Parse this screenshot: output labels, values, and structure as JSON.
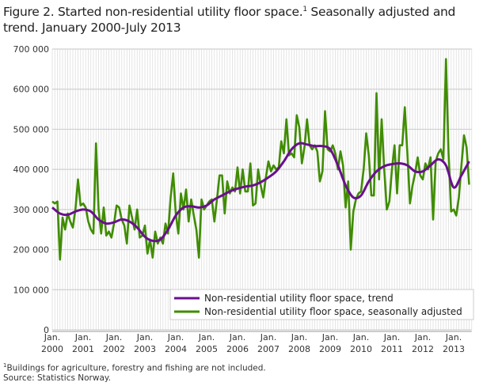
{
  "chart_data": {
    "type": "line",
    "title": "Figure 2. Started non-residential utility floor space.",
    "title_sup": "1",
    "title_rest": " Seasonally adjusted and trend. January 2000-July 2013",
    "ylim": [
      0,
      700000
    ],
    "yticks": [
      "0",
      "100 000",
      "200 000",
      "300 000",
      "400 000",
      "500 000",
      "600 000",
      "700 000"
    ],
    "ytick_values": [
      0,
      100000,
      200000,
      300000,
      400000,
      500000,
      600000,
      700000
    ],
    "xticks": [
      {
        "top": "Jan.",
        "bottom": "2000"
      },
      {
        "top": "Jan.",
        "bottom": "2001"
      },
      {
        "top": "Jan.",
        "bottom": "2002"
      },
      {
        "top": "Jan.",
        "bottom": "2003"
      },
      {
        "top": "Jan.",
        "bottom": "2004"
      },
      {
        "top": "Jan.",
        "bottom": "2005"
      },
      {
        "top": "Jan.",
        "bottom": "2006"
      },
      {
        "top": "Jan.",
        "bottom": "2007"
      },
      {
        "top": "Jan.",
        "bottom": "2008"
      },
      {
        "top": "Jan.",
        "bottom": "2009"
      },
      {
        "top": "Jan.",
        "bottom": "2010"
      },
      {
        "top": "Jan.",
        "bottom": "2011"
      },
      {
        "top": "Jan.",
        "bottom": "2012"
      },
      {
        "top": "Jan.",
        "bottom": "2013"
      }
    ],
    "grid": true,
    "legend_placement": "bottom-right",
    "series": [
      {
        "name": "Non-residential utility floor space, trend",
        "color": "#6a0f8e",
        "points": [
          [
            "2000-01",
            305000
          ],
          [
            "2000-04",
            290000
          ],
          [
            "2000-07",
            287000
          ],
          [
            "2000-10",
            295000
          ],
          [
            "2001-01",
            300000
          ],
          [
            "2001-04",
            295000
          ],
          [
            "2001-07",
            275000
          ],
          [
            "2001-10",
            265000
          ],
          [
            "2002-01",
            268000
          ],
          [
            "2002-04",
            275000
          ],
          [
            "2002-07",
            270000
          ],
          [
            "2002-10",
            255000
          ],
          [
            "2003-01",
            232000
          ],
          [
            "2003-04",
            222000
          ],
          [
            "2003-07",
            225000
          ],
          [
            "2003-10",
            250000
          ],
          [
            "2004-01",
            285000
          ],
          [
            "2004-04",
            305000
          ],
          [
            "2004-07",
            308000
          ],
          [
            "2004-10",
            305000
          ],
          [
            "2005-01",
            310000
          ],
          [
            "2005-04",
            325000
          ],
          [
            "2005-07",
            335000
          ],
          [
            "2005-10",
            345000
          ],
          [
            "2006-01",
            352000
          ],
          [
            "2006-04",
            357000
          ],
          [
            "2006-07",
            360000
          ],
          [
            "2006-10",
            368000
          ],
          [
            "2007-01",
            380000
          ],
          [
            "2007-04",
            395000
          ],
          [
            "2007-07",
            420000
          ],
          [
            "2007-10",
            450000
          ],
          [
            "2008-01",
            465000
          ],
          [
            "2008-04",
            462000
          ],
          [
            "2008-07",
            458000
          ],
          [
            "2008-10",
            458000
          ],
          [
            "2009-01",
            450000
          ],
          [
            "2009-04",
            410000
          ],
          [
            "2009-07",
            360000
          ],
          [
            "2009-10",
            330000
          ],
          [
            "2010-01",
            335000
          ],
          [
            "2010-04",
            370000
          ],
          [
            "2010-07",
            395000
          ],
          [
            "2010-10",
            408000
          ],
          [
            "2011-01",
            413000
          ],
          [
            "2011-04",
            415000
          ],
          [
            "2011-07",
            410000
          ],
          [
            "2011-10",
            395000
          ],
          [
            "2012-01",
            395000
          ],
          [
            "2012-04",
            410000
          ],
          [
            "2012-07",
            425000
          ],
          [
            "2012-10",
            410000
          ],
          [
            "2013-01",
            355000
          ],
          [
            "2013-04",
            385000
          ],
          [
            "2013-07",
            420000
          ]
        ]
      },
      {
        "name": "Non-residential utility floor space, seasonally adjusted",
        "color": "#3f8c00",
        "values": [
          320000,
          315000,
          320000,
          175000,
          280000,
          250000,
          290000,
          270000,
          255000,
          300000,
          375000,
          310000,
          315000,
          305000,
          270000,
          250000,
          240000,
          465000,
          300000,
          240000,
          305000,
          235000,
          245000,
          230000,
          265000,
          310000,
          305000,
          275000,
          260000,
          215000,
          310000,
          280000,
          250000,
          300000,
          230000,
          235000,
          260000,
          190000,
          225000,
          180000,
          245000,
          215000,
          230000,
          215000,
          265000,
          240000,
          330000,
          390000,
          290000,
          240000,
          340000,
          300000,
          350000,
          270000,
          325000,
          285000,
          250000,
          180000,
          325000,
          300000,
          310000,
          320000,
          325000,
          270000,
          325000,
          385000,
          385000,
          290000,
          370000,
          340000,
          355000,
          345000,
          405000,
          340000,
          400000,
          345000,
          345000,
          415000,
          310000,
          315000,
          400000,
          360000,
          330000,
          380000,
          420000,
          395000,
          410000,
          400000,
          405000,
          470000,
          440000,
          525000,
          435000,
          440000,
          430000,
          535000,
          505000,
          415000,
          455000,
          525000,
          460000,
          450000,
          460000,
          445000,
          370000,
          395000,
          545000,
          450000,
          445000,
          460000,
          440000,
          400000,
          445000,
          410000,
          305000,
          370000,
          200000,
          295000,
          325000,
          340000,
          345000,
          400000,
          490000,
          435000,
          335000,
          335000,
          590000,
          375000,
          525000,
          400000,
          300000,
          320000,
          400000,
          460000,
          340000,
          460000,
          460000,
          555000,
          440000,
          315000,
          360000,
          390000,
          430000,
          385000,
          375000,
          415000,
          400000,
          430000,
          275000,
          420000,
          440000,
          450000,
          425000,
          675000,
          440000,
          295000,
          300000,
          285000,
          330000,
          410000,
          485000,
          455000,
          362000
        ]
      }
    ]
  },
  "footnotes": {
    "note": "Buildings for agriculture, forestry and fishing are not included.",
    "note_sup": "1",
    "source": "Source: Statistics Norway."
  }
}
